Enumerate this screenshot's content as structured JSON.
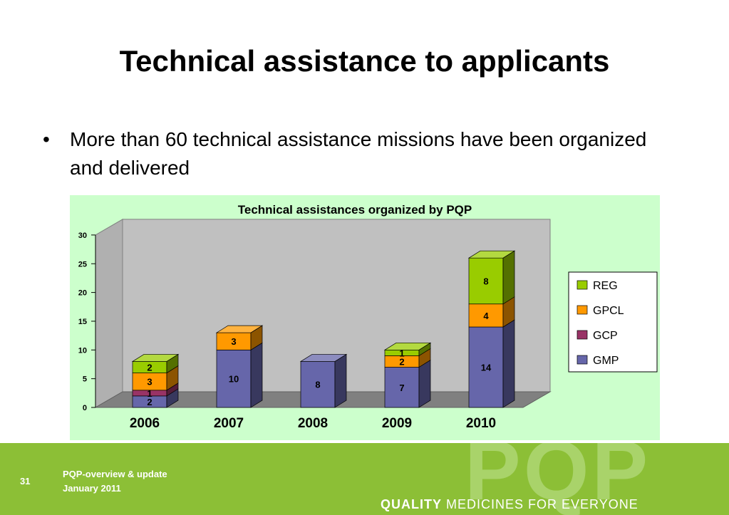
{
  "slide": {
    "title": "Technical assistance to applicants",
    "bullet": "More than 60 technical assistance missions have been organized and delivered"
  },
  "chart_data": {
    "type": "bar",
    "stacked": true,
    "three_d": true,
    "title": "Technical assistances organized by PQP",
    "categories": [
      "2006",
      "2007",
      "2008",
      "2009",
      "2010"
    ],
    "series": [
      {
        "name": "GMP",
        "values": [
          2,
          10,
          8,
          7,
          14
        ],
        "color": "#6666aa"
      },
      {
        "name": "GCP",
        "values": [
          1,
          0,
          0,
          0,
          0
        ],
        "color": "#993366"
      },
      {
        "name": "GPCL",
        "values": [
          3,
          3,
          0,
          2,
          4
        ],
        "color": "#ff9900"
      },
      {
        "name": "REG",
        "values": [
          2,
          0,
          0,
          1,
          8
        ],
        "color": "#99cc00"
      }
    ],
    "ylim": [
      0,
      30
    ],
    "yticks": [
      0,
      5,
      10,
      15,
      20,
      25,
      30
    ],
    "grid": false,
    "legend": "right"
  },
  "footer": {
    "page_number": "31",
    "line1": "PQP-overview & update",
    "line2": "January 2011",
    "logo": "PQP",
    "tagline_bold": "QUALITY",
    "tagline_rest": " MEDICINES FOR EVERYONE"
  }
}
